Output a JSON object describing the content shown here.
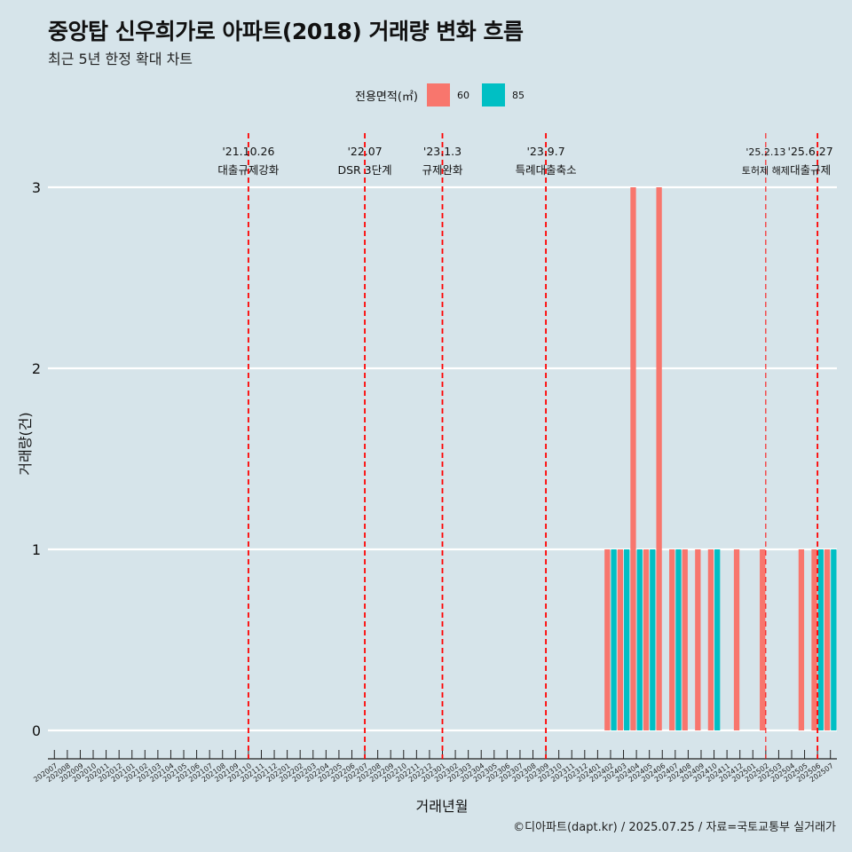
{
  "title": "중앙탑 신우희가로 아파트(2018) 거래량 변화 흐름",
  "subtitle": "최근 5년 한정 확대 차트",
  "caption": "©디아파트(dapt.kr) / 2025.07.25 / 자료=국토교통부 실거래가",
  "colors": {
    "background": "#d6e4ea",
    "size60": "#f8766d",
    "size85": "#00bfc4",
    "event_line": "#ff0000",
    "grid": "#ffffff"
  },
  "legend": {
    "title": "전용면적(㎡)",
    "items": [
      "60",
      "85"
    ]
  },
  "chart_data": {
    "type": "bar",
    "xlabel": "거래년월",
    "ylabel": "거래량(건)",
    "ylim": [
      0,
      3
    ],
    "yticks": [
      0,
      1,
      2,
      3
    ],
    "grid": true,
    "legend_position": "top",
    "categories": [
      "202007",
      "202008",
      "202009",
      "202010",
      "202011",
      "202012",
      "202101",
      "202102",
      "202103",
      "202104",
      "202105",
      "202106",
      "202107",
      "202108",
      "202109",
      "202110",
      "202111",
      "202112",
      "202201",
      "202202",
      "202203",
      "202204",
      "202205",
      "202206",
      "202207",
      "202208",
      "202209",
      "202210",
      "202211",
      "202212",
      "202301",
      "202302",
      "202303",
      "202304",
      "202305",
      "202306",
      "202307",
      "202308",
      "202309",
      "202310",
      "202311",
      "202312",
      "202401",
      "202402",
      "202403",
      "202404",
      "202405",
      "202406",
      "202407",
      "202408",
      "202409",
      "202410",
      "202411",
      "202412",
      "202501",
      "202502",
      "202503",
      "202504",
      "202505",
      "202506",
      "202507"
    ],
    "series": [
      {
        "name": "60",
        "values": [
          0,
          0,
          0,
          0,
          0,
          0,
          0,
          0,
          0,
          0,
          0,
          0,
          0,
          0,
          0,
          0,
          0,
          0,
          0,
          0,
          0,
          0,
          0,
          0,
          0,
          0,
          0,
          0,
          0,
          0,
          0,
          0,
          0,
          0,
          0,
          0,
          0,
          0,
          0,
          0,
          0,
          0,
          0,
          1,
          1,
          3,
          1,
          3,
          1,
          1,
          1,
          1,
          0,
          1,
          0,
          1,
          0,
          0,
          1,
          1,
          1
        ]
      },
      {
        "name": "85",
        "values": [
          0,
          0,
          0,
          0,
          0,
          0,
          0,
          0,
          0,
          0,
          0,
          0,
          0,
          0,
          0,
          0,
          0,
          0,
          0,
          0,
          0,
          0,
          0,
          0,
          0,
          0,
          0,
          0,
          0,
          0,
          0,
          0,
          0,
          0,
          0,
          0,
          0,
          0,
          0,
          0,
          0,
          0,
          0,
          1,
          1,
          1,
          1,
          0,
          1,
          0,
          0,
          1,
          0,
          0,
          0,
          0,
          0,
          0,
          0,
          1,
          1
        ]
      }
    ],
    "events": [
      {
        "month": "202110",
        "date": "'21.10.26",
        "label": "대출규제강화"
      },
      {
        "month": "202207",
        "date": "'22.07",
        "label": "DSR 3단계"
      },
      {
        "month": "202301",
        "date": "'23.1.3",
        "label": "규제완화"
      },
      {
        "month": "202309",
        "date": "'23.9.7",
        "label": "특례대출축소"
      },
      {
        "month": "202502",
        "date": "'25.2.13",
        "label": "토허제 해제"
      },
      {
        "month": "202506",
        "date": "'25.6.27",
        "label": "대출규제"
      }
    ]
  }
}
